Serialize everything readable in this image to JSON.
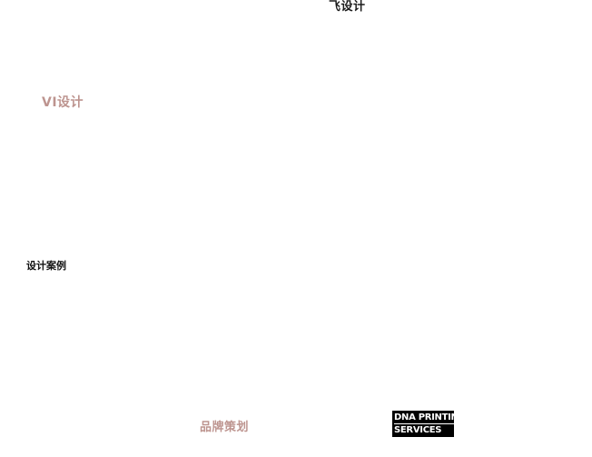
{
  "top_title": {
    "text": "飞设计"
  },
  "services": {
    "vi_design": "VI设计",
    "brand_planning": "品牌策划"
  },
  "heading_left": {
    "text": "设计案例"
  },
  "logo": {
    "line1": "DNA PRINTING",
    "line2": "SERVICES",
    "bg_color": "#000000",
    "text_color": "#ffffff"
  },
  "colors": {
    "accent_pink": "#bd948f",
    "text_black": "#111111",
    "page_background": "#ffffff"
  }
}
